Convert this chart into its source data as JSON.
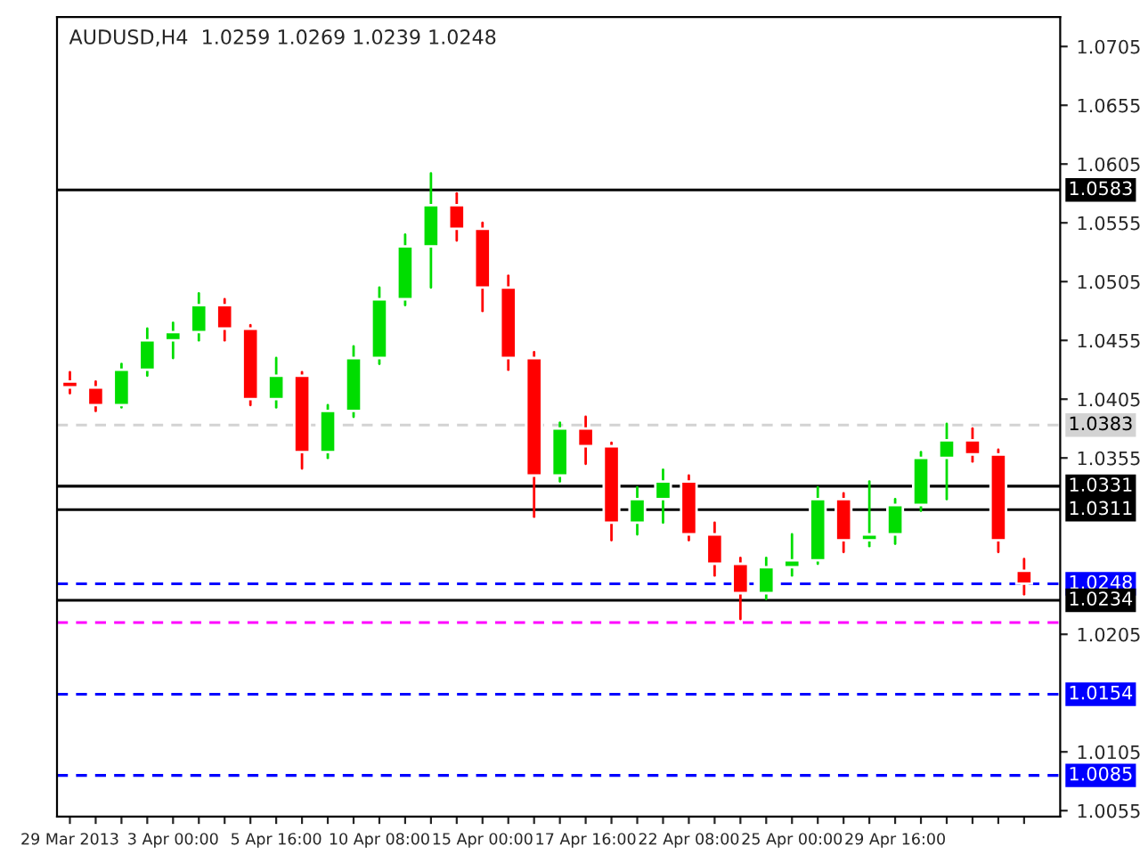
{
  "chart_data": {
    "type": "candlestick",
    "title": "AUDUSD,H4  1.0259 1.0269 1.0239 1.0248",
    "categories": [
      "29 Mar 2013",
      null,
      null,
      null,
      "3 Apr 00:00",
      null,
      null,
      null,
      "5 Apr 16:00",
      null,
      null,
      null,
      "10 Apr 08:00",
      null,
      null,
      null,
      "15 Apr 00:00",
      null,
      null,
      null,
      "17 Apr 16:00",
      null,
      null,
      null,
      "22 Apr 08:00",
      null,
      null,
      null,
      "25 Apr 00:00",
      null,
      null,
      null,
      "29 Apr 16:00",
      null,
      null,
      null,
      null,
      null
    ],
    "ohlc": [
      [
        1.042,
        1.0428,
        1.041,
        1.0415
      ],
      [
        1.0415,
        1.042,
        1.0395,
        1.04
      ],
      [
        1.04,
        1.0435,
        1.0398,
        1.043
      ],
      [
        1.043,
        1.0465,
        1.0425,
        1.0455
      ],
      [
        1.0455,
        1.047,
        1.044,
        1.0462
      ],
      [
        1.0462,
        1.0495,
        1.0455,
        1.0485
      ],
      [
        1.0485,
        1.049,
        1.0455,
        1.0465
      ],
      [
        1.0465,
        1.0468,
        1.04,
        1.0405
      ],
      [
        1.0405,
        1.044,
        1.0398,
        1.0425
      ],
      [
        1.0425,
        1.0428,
        1.0346,
        1.036
      ],
      [
        1.036,
        1.04,
        1.0355,
        1.0395
      ],
      [
        1.0395,
        1.045,
        1.039,
        1.044
      ],
      [
        1.044,
        1.05,
        1.0435,
        1.049
      ],
      [
        1.049,
        1.0545,
        1.0485,
        1.0535
      ],
      [
        1.0535,
        1.0597,
        1.05,
        1.057
      ],
      [
        1.057,
        1.058,
        1.054,
        1.055
      ],
      [
        1.055,
        1.0555,
        1.048,
        1.05
      ],
      [
        1.05,
        1.051,
        1.043,
        1.044
      ],
      [
        1.044,
        1.0445,
        1.0305,
        1.034
      ],
      [
        1.034,
        1.0385,
        1.0335,
        1.038
      ],
      [
        1.038,
        1.039,
        1.035,
        1.0365
      ],
      [
        1.0365,
        1.0368,
        1.0285,
        1.03
      ],
      [
        1.03,
        1.033,
        1.029,
        1.032
      ],
      [
        1.032,
        1.0345,
        1.03,
        1.0335
      ],
      [
        1.0335,
        1.034,
        1.0285,
        1.029
      ],
      [
        1.029,
        1.03,
        1.0255,
        1.0265
      ],
      [
        1.0265,
        1.027,
        1.0218,
        1.024
      ],
      [
        1.024,
        1.027,
        1.0235,
        1.0262
      ],
      [
        1.0262,
        1.029,
        1.0255,
        1.0268
      ],
      [
        1.0268,
        1.033,
        1.0265,
        1.032
      ],
      [
        1.032,
        1.0325,
        1.0275,
        1.0285
      ],
      [
        1.0285,
        1.0335,
        1.028,
        1.029
      ],
      [
        1.029,
        1.032,
        1.0282,
        1.0315
      ],
      [
        1.0315,
        1.036,
        1.031,
        1.0355
      ],
      [
        1.0355,
        1.0384,
        1.032,
        1.037
      ],
      [
        1.037,
        1.038,
        1.0352,
        1.0358
      ],
      [
        1.0358,
        1.0362,
        1.0275,
        1.0285
      ],
      [
        1.0259,
        1.0269,
        1.0239,
        1.0248
      ]
    ],
    "ylim": [
      1.005,
      1.073
    ],
    "yticks": [
      1.0055,
      1.0105,
      1.0205,
      1.0355,
      1.0405,
      1.0455,
      1.0505,
      1.0555,
      1.0605,
      1.0655,
      1.0705
    ],
    "ref_lines": [
      {
        "axis": "y",
        "value": 1.0583,
        "label": "1.0583",
        "color": "#000000",
        "line_style": "solid"
      },
      {
        "axis": "y",
        "value": 1.0383,
        "label": "1.0383",
        "color": "#d3d3d3",
        "line_style": "dashed"
      },
      {
        "axis": "y",
        "value": 1.0331,
        "label": "1.0331",
        "color": "#000000",
        "line_style": "solid"
      },
      {
        "axis": "y",
        "value": 1.0311,
        "label": "1.0311",
        "color": "#000000",
        "line_style": "solid"
      },
      {
        "axis": "y",
        "value": 1.0248,
        "label": "1.0248",
        "color": "#0000ff",
        "line_style": "dashed"
      },
      {
        "axis": "y",
        "value": 1.0234,
        "label": "1.0234",
        "color": "#000000",
        "line_style": "solid"
      },
      {
        "axis": "y",
        "value": 1.0215,
        "color": "#ff00ff",
        "line_style": "dashed"
      },
      {
        "axis": "y",
        "value": 1.0154,
        "label": "1.0154",
        "color": "#0000ff",
        "line_style": "dashed"
      },
      {
        "axis": "y",
        "value": 1.0085,
        "label": "1.0085",
        "color": "#0000ff",
        "line_style": "dashed"
      }
    ],
    "grid": false,
    "legend": false
  }
}
